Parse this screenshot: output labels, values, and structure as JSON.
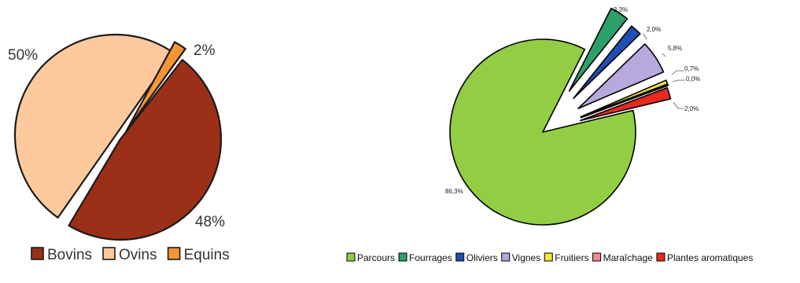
{
  "chart_data": [
    {
      "type": "pie",
      "slices": [
        {
          "name": "Bovins",
          "label": "48%",
          "value": 48,
          "color": "#9B2F17"
        },
        {
          "name": "Ovins",
          "label": "50%",
          "value": 50,
          "color": "#FEC99C"
        },
        {
          "name": "Equins",
          "label": "2%",
          "value": 2,
          "color": "#F79533"
        }
      ],
      "legend": [
        "Bovins",
        "Ovins",
        "Equins"
      ],
      "legend_position": "bottom"
    },
    {
      "type": "pie",
      "slices": [
        {
          "name": "Parcours",
          "label": "86,3%",
          "value": 86.3,
          "color": "#92CD43"
        },
        {
          "name": "Fourrages",
          "label": "3,3%",
          "value": 3.3,
          "color": "#2E9E6B"
        },
        {
          "name": "Oliviers",
          "label": "2,0%",
          "value": 2.0,
          "color": "#1F4FB4"
        },
        {
          "name": "Vignes",
          "label": "5,8%",
          "value": 5.8,
          "color": "#B7A9DE"
        },
        {
          "name": "Fruitiers",
          "label": "0,7%",
          "value": 0.7,
          "color": "#F4E33A"
        },
        {
          "name": "Maraîchage",
          "label": "0,0%",
          "value": 0.0,
          "color": "#F08A92"
        },
        {
          "name": "Plantes aromatiques",
          "label": "2,0%",
          "value": 2.0,
          "color": "#E8291F"
        }
      ],
      "legend": [
        "Parcours",
        "Fourrages",
        "Oliviers",
        "Vignes",
        "Fruitiers",
        "Maraîchage",
        "Plantes aromatiques"
      ],
      "legend_position": "bottom"
    }
  ]
}
